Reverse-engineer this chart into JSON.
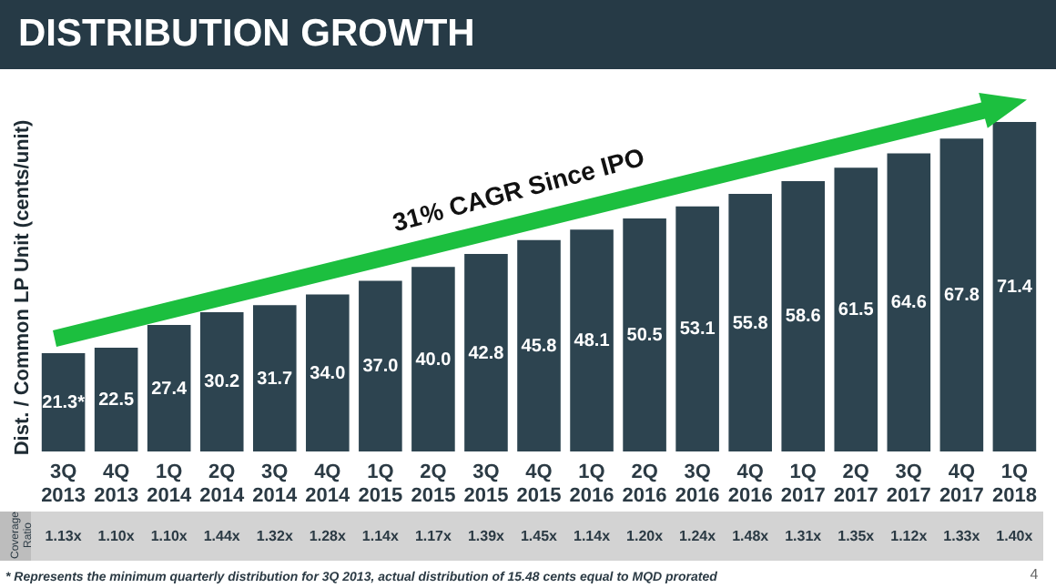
{
  "chart_data": {
    "type": "bar",
    "title": "DISTRIBUTION GROWTH",
    "ylabel": "Dist. / Common LP Unit (cents/unit)",
    "categories": [
      "3Q 2013",
      "4Q 2013",
      "1Q 2014",
      "2Q 2014",
      "3Q 2014",
      "4Q 2014",
      "1Q 2015",
      "2Q 2015",
      "3Q 2015",
      "4Q 2015",
      "1Q 2016",
      "2Q 2016",
      "3Q 2016",
      "4Q 2016",
      "1Q 2017",
      "2Q 2017",
      "3Q 2017",
      "4Q 2017",
      "1Q 2018"
    ],
    "values": [
      21.3,
      22.5,
      27.4,
      30.2,
      31.7,
      34.0,
      37.0,
      40.0,
      42.8,
      45.8,
      48.1,
      50.5,
      53.1,
      55.8,
      58.6,
      61.5,
      64.6,
      67.8,
      71.4
    ],
    "value_labels": [
      "21.3*",
      "22.5",
      "27.4",
      "30.2",
      "31.7",
      "34.0",
      "37.0",
      "40.0",
      "42.8",
      "45.8",
      "48.1",
      "50.5",
      "53.1",
      "55.8",
      "58.6",
      "61.5",
      "64.6",
      "67.8",
      "71.4"
    ],
    "color": "#2d4450",
    "annotations": [
      "31% CAGR Since IPO",
      "Coverage Ratio",
      "* Represents the minimum quarterly distribution for 3Q 2013, actual distribution of 15.48 cents equal to MQD prorated",
      "4",
      "1.13x",
      "1.10x",
      "1.10x",
      "1.44x",
      "1.32x",
      "1.28x",
      "1.14x",
      "1.17x",
      "1.39x",
      "1.45x",
      "1.14x",
      "1.20x",
      "1.24x",
      "1.48x",
      "1.31x",
      "1.35x",
      "1.12x",
      "1.33x",
      "1.40x"
    ],
    "grid": false
  }
}
